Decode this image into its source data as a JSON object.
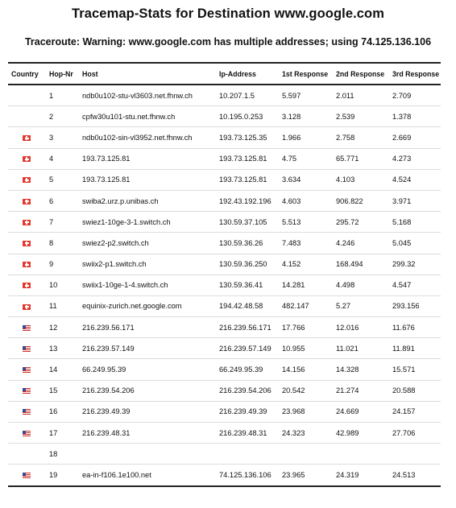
{
  "title": "Tracemap-Stats for Destination www.google.com",
  "subtitle": "Traceroute: Warning: www.google.com has multiple addresses; using 74.125.136.106",
  "columns": [
    "Country",
    "Hop-Nr",
    "Host",
    "Ip-Address",
    "1st Response",
    "2nd Response",
    "3rd Response"
  ],
  "rows": [
    {
      "flag": "",
      "hop": "1",
      "host": "ndb0u102-stu-vl3603.net.fhnw.ch",
      "ip": "10.207.1.5",
      "r1": "5.597",
      "r2": "2.011",
      "r3": "2.709"
    },
    {
      "flag": "",
      "hop": "2",
      "host": "cpfw30u101-stu.net.fhnw.ch",
      "ip": "10.195.0.253",
      "r1": "3.128",
      "r2": "2.539",
      "r3": "1.378"
    },
    {
      "flag": "ch",
      "hop": "3",
      "host": "ndb0u102-sin-vl3952.net.fhnw.ch",
      "ip": "193.73.125.35",
      "r1": "1.966",
      "r2": "2.758",
      "r3": "2.669"
    },
    {
      "flag": "ch",
      "hop": "4",
      "host": "193.73.125.81",
      "ip": "193.73.125.81",
      "r1": "4.75",
      "r2": "65.771",
      "r3": "4.273"
    },
    {
      "flag": "ch",
      "hop": "5",
      "host": "193.73.125.81",
      "ip": "193.73.125.81",
      "r1": "3.634",
      "r2": "4.103",
      "r3": "4.524"
    },
    {
      "flag": "ch",
      "hop": "6",
      "host": "swiba2.urz.p.unibas.ch",
      "ip": "192.43.192.196",
      "r1": "4.603",
      "r2": "906.822",
      "r3": "3.971"
    },
    {
      "flag": "ch",
      "hop": "7",
      "host": "swiez1-10ge-3-1.switch.ch",
      "ip": "130.59.37.105",
      "r1": "5.513",
      "r2": "295.72",
      "r3": "5.168"
    },
    {
      "flag": "ch",
      "hop": "8",
      "host": "swiez2-p2.switch.ch",
      "ip": "130.59.36.26",
      "r1": "7.483",
      "r2": "4.246",
      "r3": "5.045"
    },
    {
      "flag": "ch",
      "hop": "9",
      "host": "swiix2-p1.switch.ch",
      "ip": "130.59.36.250",
      "r1": "4.152",
      "r2": "168.494",
      "r3": "299.32"
    },
    {
      "flag": "ch",
      "hop": "10",
      "host": "swiix1-10ge-1-4.switch.ch",
      "ip": "130.59.36.41",
      "r1": "14.281",
      "r2": "4.498",
      "r3": "4.547"
    },
    {
      "flag": "ch",
      "hop": "11",
      "host": "equinix-zurich.net.google.com",
      "ip": "194.42.48.58",
      "r1": "482.147",
      "r2": "5.27",
      "r3": "293.156"
    },
    {
      "flag": "us",
      "hop": "12",
      "host": "216.239.56.171",
      "ip": "216.239.56.171",
      "r1": "17.766",
      "r2": "12.016",
      "r3": "11.676"
    },
    {
      "flag": "us",
      "hop": "13",
      "host": "216.239.57.149",
      "ip": "216.239.57.149",
      "r1": "10.955",
      "r2": "11.021",
      "r3": "11.891"
    },
    {
      "flag": "us",
      "hop": "14",
      "host": "66.249.95.39",
      "ip": "66.249.95.39",
      "r1": "14.156",
      "r2": "14.328",
      "r3": "15.571"
    },
    {
      "flag": "us",
      "hop": "15",
      "host": "216.239.54.206",
      "ip": "216.239.54.206",
      "r1": "20.542",
      "r2": "21.274",
      "r3": "20.588"
    },
    {
      "flag": "us",
      "hop": "16",
      "host": "216.239.49.39",
      "ip": "216.239.49.39",
      "r1": "23.968",
      "r2": "24.669",
      "r3": "24.157"
    },
    {
      "flag": "us",
      "hop": "17",
      "host": "216.239.48.31",
      "ip": "216.239.48.31",
      "r1": "24.323",
      "r2": "42.989",
      "r3": "27.706"
    },
    {
      "flag": "",
      "hop": "18",
      "host": "",
      "ip": "",
      "r1": "",
      "r2": "",
      "r3": ""
    },
    {
      "flag": "us",
      "hop": "19",
      "host": "ea-in-f106.1e100.net",
      "ip": "74.125.136.106",
      "r1": "23.965",
      "r2": "24.319",
      "r3": "24.513"
    }
  ]
}
